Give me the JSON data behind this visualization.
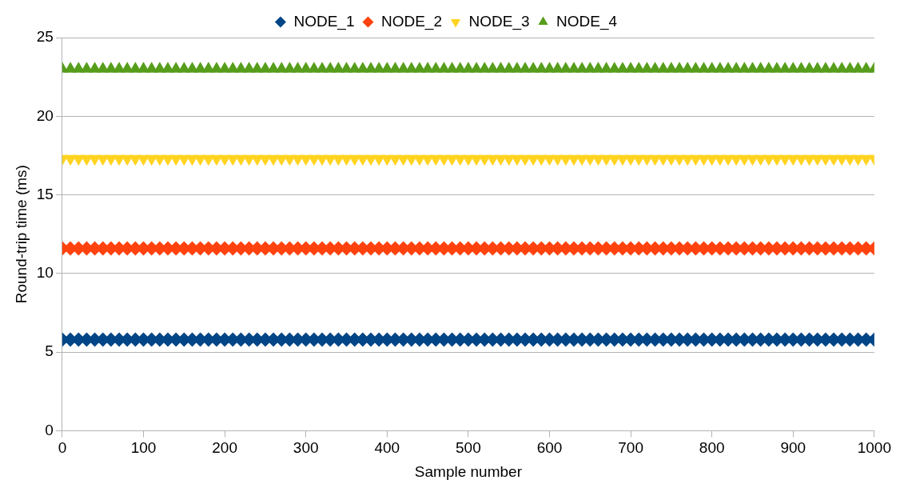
{
  "chart_data": {
    "type": "scatter",
    "xlabel": "Sample number",
    "ylabel": "Round-trip time (ms)",
    "x": [
      0,
      10,
      20,
      30,
      40,
      50,
      60,
      70,
      80,
      90,
      100,
      110,
      120,
      130,
      140,
      150,
      160,
      170,
      180,
      190,
      200,
      210,
      220,
      230,
      240,
      250,
      260,
      270,
      280,
      290,
      300,
      310,
      320,
      330,
      340,
      350,
      360,
      370,
      380,
      390,
      400,
      410,
      420,
      430,
      440,
      450,
      460,
      470,
      480,
      490,
      500,
      510,
      520,
      530,
      540,
      550,
      560,
      570,
      580,
      590,
      600,
      610,
      620,
      630,
      640,
      650,
      660,
      670,
      680,
      690,
      700,
      710,
      720,
      730,
      740,
      750,
      760,
      770,
      780,
      790,
      800,
      810,
      820,
      830,
      840,
      850,
      860,
      870,
      880,
      890,
      900,
      910,
      920,
      930,
      940,
      950,
      960,
      970,
      980,
      990,
      1000
    ],
    "series": [
      {
        "name": "NODE_1",
        "color": "#004586",
        "marker": "diamond",
        "values": [
          5.8,
          5.8,
          5.8,
          5.8,
          5.8,
          5.8,
          5.8,
          5.8,
          5.8,
          5.8,
          5.8,
          5.8,
          5.8,
          5.8,
          5.8,
          5.8,
          5.8,
          5.8,
          5.8,
          5.8,
          5.8,
          5.8,
          5.8,
          5.8,
          5.8,
          5.8,
          5.8,
          5.8,
          5.8,
          5.8,
          5.8,
          5.8,
          5.8,
          5.8,
          5.8,
          5.8,
          5.8,
          5.8,
          5.8,
          5.8,
          5.8,
          5.8,
          5.8,
          5.8,
          5.8,
          5.8,
          5.8,
          5.8,
          5.8,
          5.8,
          5.8,
          5.8,
          5.8,
          5.8,
          5.8,
          5.8,
          5.8,
          5.8,
          5.8,
          5.8,
          5.8,
          5.8,
          5.8,
          5.8,
          5.8,
          5.8,
          5.8,
          5.8,
          5.8,
          5.8,
          5.8,
          5.8,
          5.8,
          5.8,
          5.8,
          5.8,
          5.8,
          5.8,
          5.8,
          5.8,
          5.8,
          5.8,
          5.8,
          5.8,
          5.8,
          5.8,
          5.8,
          5.8,
          5.8,
          5.8,
          5.8,
          5.8,
          5.8,
          5.8,
          5.8,
          5.8,
          5.8,
          5.8,
          5.8,
          5.8,
          5.8
        ]
      },
      {
        "name": "NODE_2",
        "color": "#ff420e",
        "marker": "diamond",
        "values": [
          11.6,
          11.6,
          11.6,
          11.6,
          11.6,
          11.6,
          11.6,
          11.6,
          11.6,
          11.6,
          11.6,
          11.6,
          11.6,
          11.6,
          11.6,
          11.6,
          11.6,
          11.6,
          11.6,
          11.6,
          11.6,
          11.6,
          11.6,
          11.6,
          11.6,
          11.6,
          11.6,
          11.6,
          11.6,
          11.6,
          11.6,
          11.6,
          11.6,
          11.6,
          11.6,
          11.6,
          11.6,
          11.6,
          11.6,
          11.6,
          11.6,
          11.6,
          11.6,
          11.6,
          11.6,
          11.6,
          11.6,
          11.6,
          11.6,
          11.6,
          11.6,
          11.6,
          11.6,
          11.6,
          11.6,
          11.6,
          11.6,
          11.6,
          11.6,
          11.6,
          11.6,
          11.6,
          11.6,
          11.6,
          11.6,
          11.6,
          11.6,
          11.6,
          11.6,
          11.6,
          11.6,
          11.6,
          11.6,
          11.6,
          11.6,
          11.6,
          11.6,
          11.6,
          11.6,
          11.6,
          11.6,
          11.6,
          11.6,
          11.6,
          11.6,
          11.6,
          11.6,
          11.6,
          11.6,
          11.6,
          11.6,
          11.6,
          11.6,
          11.6,
          11.6,
          11.6,
          11.6,
          11.6,
          11.6,
          11.6,
          11.6
        ]
      },
      {
        "name": "NODE_3",
        "color": "#ffd320",
        "marker": "triangle-down",
        "values": [
          17.3,
          17.3,
          17.3,
          17.3,
          17.3,
          17.3,
          17.3,
          17.3,
          17.3,
          17.3,
          17.3,
          17.3,
          17.3,
          17.3,
          17.3,
          17.3,
          17.3,
          17.3,
          17.3,
          17.3,
          17.3,
          17.3,
          17.3,
          17.3,
          17.3,
          17.3,
          17.3,
          17.3,
          17.3,
          17.3,
          17.3,
          17.3,
          17.3,
          17.3,
          17.3,
          17.3,
          17.3,
          17.3,
          17.3,
          17.3,
          17.3,
          17.3,
          17.3,
          17.3,
          17.3,
          17.3,
          17.3,
          17.3,
          17.3,
          17.3,
          17.3,
          17.3,
          17.3,
          17.3,
          17.3,
          17.3,
          17.3,
          17.3,
          17.3,
          17.3,
          17.3,
          17.3,
          17.3,
          17.3,
          17.3,
          17.3,
          17.3,
          17.3,
          17.3,
          17.3,
          17.3,
          17.3,
          17.3,
          17.3,
          17.3,
          17.3,
          17.3,
          17.3,
          17.3,
          17.3,
          17.3,
          17.3,
          17.3,
          17.3,
          17.3,
          17.3,
          17.3,
          17.3,
          17.3,
          17.3,
          17.3,
          17.3,
          17.3,
          17.3,
          17.3,
          17.3,
          17.3,
          17.3,
          17.3,
          17.3,
          17.3
        ]
      },
      {
        "name": "NODE_4",
        "color": "#579d1c",
        "marker": "triangle",
        "values": [
          23,
          23,
          23,
          23,
          23,
          23,
          23,
          23,
          23,
          23,
          23,
          23,
          23,
          23,
          23,
          23,
          23,
          23,
          23,
          23,
          23,
          23,
          23,
          23,
          23,
          23,
          23,
          23,
          23,
          23,
          23,
          23,
          23,
          23,
          23,
          23,
          23,
          23,
          23,
          23,
          23,
          23,
          23,
          23,
          23,
          23,
          23,
          23,
          23,
          23,
          23,
          23,
          23,
          23,
          23,
          23,
          23,
          23,
          23,
          23,
          23,
          23,
          23,
          23,
          23,
          23,
          23,
          23,
          23,
          23,
          23,
          23,
          23,
          23,
          23,
          23,
          23,
          23,
          23,
          23,
          23,
          23,
          23,
          23,
          23,
          23,
          23,
          23,
          23,
          23,
          23,
          23,
          23,
          23,
          23,
          23,
          23,
          23,
          23,
          23,
          23
        ]
      }
    ],
    "xlim": [
      0,
      1000
    ],
    "xticks": [
      0,
      100,
      200,
      300,
      400,
      500,
      600,
      700,
      800,
      900,
      1000
    ],
    "ylim": [
      0,
      25
    ],
    "yticks": [
      0,
      5,
      10,
      15,
      20,
      25
    ],
    "grid": "y",
    "legend": "top"
  }
}
